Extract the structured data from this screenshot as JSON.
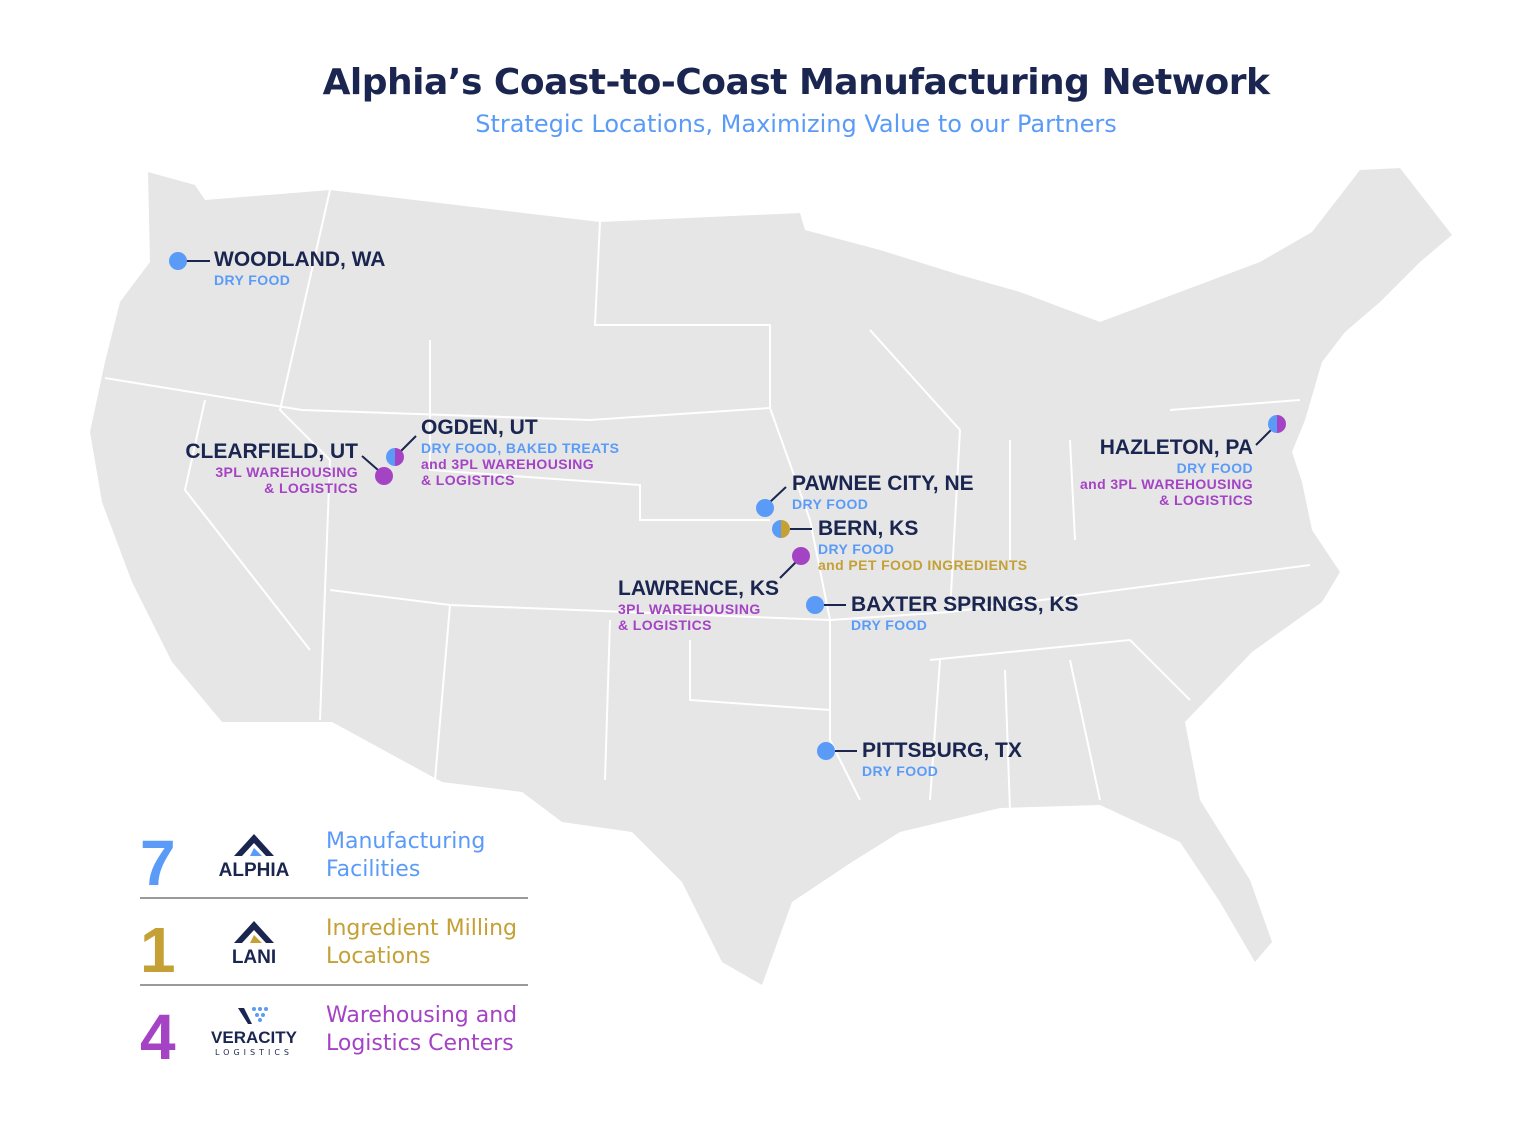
{
  "title": "Alphia’s Coast-to-Coast Manufacturing Network",
  "subtitle": "Strategic Locations, Maximizing Value to our Partners",
  "colors": {
    "navy": "#1b2650",
    "blue": "#5b9bf8",
    "purple": "#a443c4",
    "gold": "#c4a035",
    "land": "#e6e6e6"
  },
  "locations": [
    {
      "name": "WOODLAND, WA",
      "lines": [
        "DRY FOOD"
      ],
      "types": [
        "manufacturing"
      ]
    },
    {
      "name": "OGDEN, UT",
      "lines": [
        "DRY FOOD, BAKED TREATS",
        "and 3PL WAREHOUSING",
        "& LOGISTICS"
      ],
      "types": [
        "manufacturing",
        "warehousing"
      ]
    },
    {
      "name": "CLEARFIELD, UT",
      "lines": [
        "3PL WAREHOUSING",
        "& LOGISTICS"
      ],
      "types": [
        "warehousing"
      ]
    },
    {
      "name": "PAWNEE CITY, NE",
      "lines": [
        "DRY FOOD"
      ],
      "types": [
        "manufacturing"
      ]
    },
    {
      "name": "BERN, KS",
      "lines": [
        "DRY FOOD",
        "and PET FOOD INGREDIENTS"
      ],
      "types": [
        "manufacturing",
        "milling"
      ]
    },
    {
      "name": "LAWRENCE, KS",
      "lines": [
        "3PL WAREHOUSING",
        "& LOGISTICS"
      ],
      "types": [
        "warehousing"
      ]
    },
    {
      "name": "BAXTER SPRINGS, KS",
      "lines": [
        "DRY FOOD"
      ],
      "types": [
        "manufacturing"
      ]
    },
    {
      "name": "PITTSBURG, TX",
      "lines": [
        "DRY FOOD"
      ],
      "types": [
        "manufacturing"
      ]
    },
    {
      "name": "HAZLETON, PA",
      "lines": [
        "DRY FOOD",
        "and 3PL WAREHOUSING",
        "& LOGISTICS"
      ],
      "types": [
        "manufacturing",
        "warehousing"
      ]
    }
  ],
  "legend": [
    {
      "count": "7",
      "logo": "ALPHIA",
      "text1": "Manufacturing",
      "text2": "Facilities",
      "color": "#5b9bf8"
    },
    {
      "count": "1",
      "logo": "LANI",
      "text1": "Ingredient Milling",
      "text2": "Locations",
      "color": "#c4a035"
    },
    {
      "count": "4",
      "logo": "VERACITY",
      "logo_sub": "LOGISTICS",
      "text1": "Warehousing and",
      "text2": "Logistics Centers",
      "color": "#a443c4"
    }
  ]
}
